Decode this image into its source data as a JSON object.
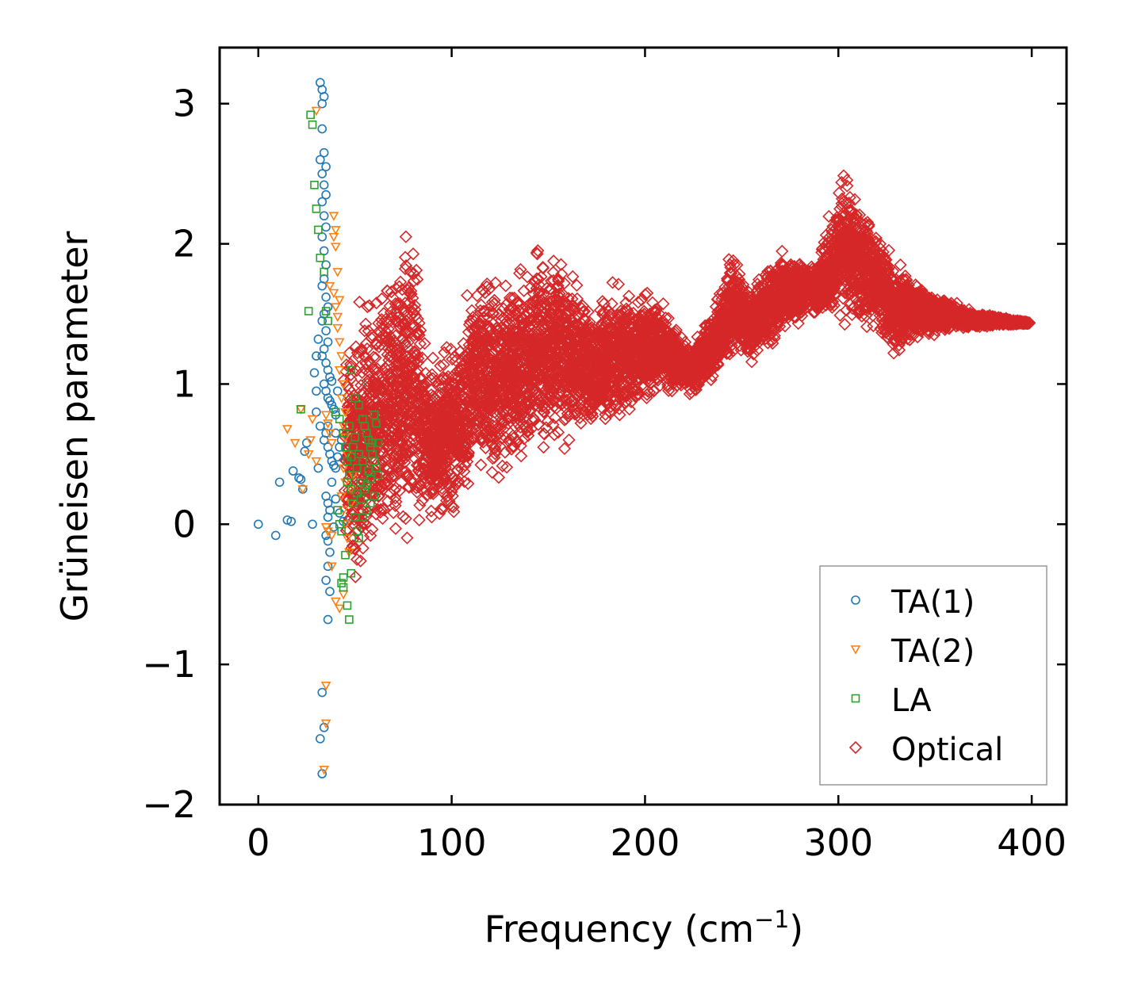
{
  "chart_data": {
    "type": "scatter",
    "title": "",
    "xlabel": "Frequency (cm",
    "xlabel_sup": "−1",
    "xlabel_suffix": ")",
    "ylabel": "Grüneisen parameter",
    "xlim": [
      -20,
      418
    ],
    "ylim": [
      -2,
      3.4
    ],
    "xticks": [
      0,
      100,
      200,
      300,
      400
    ],
    "xtick_labels": [
      "0",
      "100",
      "200",
      "300",
      "400"
    ],
    "yticks": [
      -2,
      -1,
      0,
      1,
      2,
      3
    ],
    "ytick_labels": [
      "−2",
      "−1",
      "0",
      "1",
      "2",
      "3"
    ],
    "grid": false,
    "legend_position": "lower-right",
    "series": [
      {
        "name": "TA(1)",
        "marker": "circle",
        "color": "#1f77b4",
        "points": [
          [
            0,
            0
          ],
          [
            9,
            -0.08
          ],
          [
            11,
            0.3
          ],
          [
            15,
            0.03
          ],
          [
            17,
            0.02
          ],
          [
            18,
            0.38
          ],
          [
            21,
            0.33
          ],
          [
            22,
            0.32
          ],
          [
            23,
            0.25
          ],
          [
            24,
            0.52
          ],
          [
            25,
            0.58
          ],
          [
            28,
            0
          ],
          [
            30,
            0.8
          ],
          [
            31,
            0.4
          ],
          [
            32,
            -1.53
          ],
          [
            33,
            -1.2
          ],
          [
            33,
            -1.78
          ],
          [
            34,
            -1.45
          ],
          [
            32,
            3.15
          ],
          [
            33,
            3.1
          ],
          [
            33,
            3.0
          ],
          [
            34,
            3.05
          ],
          [
            33,
            2.82
          ],
          [
            32,
            2.6
          ],
          [
            34,
            2.65
          ],
          [
            35,
            2.55
          ],
          [
            33,
            2.5
          ],
          [
            34,
            2.42
          ],
          [
            35,
            2.35
          ],
          [
            33,
            2.3
          ],
          [
            34,
            2.2
          ],
          [
            35,
            2.12
          ],
          [
            33,
            2.05
          ],
          [
            34,
            1.95
          ],
          [
            35,
            1.85
          ],
          [
            34,
            1.75
          ],
          [
            33,
            1.7
          ],
          [
            35,
            1.62
          ],
          [
            36,
            1.55
          ],
          [
            34,
            1.5
          ],
          [
            33,
            1.45
          ],
          [
            35,
            1.38
          ],
          [
            36,
            1.3
          ],
          [
            34,
            1.25
          ],
          [
            33,
            1.2
          ],
          [
            35,
            1.15
          ],
          [
            36,
            1.1
          ],
          [
            37,
            1.05
          ],
          [
            34,
            1.0
          ],
          [
            35,
            0.95
          ],
          [
            36,
            0.9
          ],
          [
            37,
            0.88
          ],
          [
            38,
            0.85
          ],
          [
            39,
            0.82
          ],
          [
            40,
            0.78
          ],
          [
            36,
            0.7
          ],
          [
            35,
            0.65
          ],
          [
            34,
            0.6
          ],
          [
            36,
            0.55
          ],
          [
            37,
            0.5
          ],
          [
            38,
            0.45
          ],
          [
            39,
            0.42
          ],
          [
            40,
            0.4
          ],
          [
            35,
            0.2
          ],
          [
            36,
            0.15
          ],
          [
            37,
            0.1
          ],
          [
            36,
            0.05
          ],
          [
            35,
            -0.08
          ],
          [
            36,
            -0.12
          ],
          [
            37,
            -0.2
          ],
          [
            36,
            -0.3
          ],
          [
            35,
            -0.4
          ],
          [
            37,
            -0.48
          ],
          [
            36,
            -0.68
          ],
          [
            29,
            1.08
          ],
          [
            30,
            1.2
          ],
          [
            31,
            1.32
          ],
          [
            30,
            0.95
          ],
          [
            32,
            0.7
          ],
          [
            40,
            0.65
          ],
          [
            42,
            0.55
          ],
          [
            41,
            0.48
          ],
          [
            43,
            0.6
          ],
          [
            38,
            0.3
          ],
          [
            40,
            0.18
          ],
          [
            42,
            0.08
          ],
          [
            44,
            0.02
          ],
          [
            39,
            -0.02
          ],
          [
            41,
            0.95
          ],
          [
            38,
            1.02
          ]
        ]
      },
      {
        "name": "TA(2)",
        "marker": "triangle-down",
        "color": "#ff7f0e",
        "points": [
          [
            15,
            0.68
          ],
          [
            19,
            0.58
          ],
          [
            22,
            0.82
          ],
          [
            23,
            0.25
          ],
          [
            26,
            0.5
          ],
          [
            27,
            0.6
          ],
          [
            28,
            0.75
          ],
          [
            30,
            0.45
          ],
          [
            30,
            2.95
          ],
          [
            35,
            -1.15
          ],
          [
            35,
            -1.42
          ],
          [
            34,
            -1.75
          ],
          [
            35,
            -0.02
          ],
          [
            36,
            -0.05
          ],
          [
            38,
            -0.08
          ],
          [
            38,
            -0.3
          ],
          [
            40,
            -0.55
          ],
          [
            42,
            -0.6
          ],
          [
            44,
            -0.5
          ],
          [
            37,
            1.7
          ],
          [
            39,
            1.65
          ],
          [
            40,
            1.55
          ],
          [
            41,
            1.48
          ],
          [
            39,
            2.2
          ],
          [
            40,
            2.1
          ],
          [
            39,
            2.05
          ],
          [
            40,
            1.98
          ],
          [
            41,
            1.8
          ],
          [
            42,
            1.6
          ],
          [
            41,
            1.4
          ],
          [
            42,
            1.3
          ],
          [
            43,
            1.2
          ],
          [
            42,
            1.1
          ],
          [
            44,
            1.0
          ],
          [
            43,
            0.9
          ],
          [
            45,
            0.8
          ],
          [
            44,
            0.7
          ],
          [
            45,
            0.62
          ],
          [
            46,
            0.5
          ],
          [
            44,
            0.4
          ],
          [
            45,
            0.3
          ],
          [
            43,
            0.2
          ],
          [
            44,
            0.1
          ],
          [
            45,
            0.0
          ],
          [
            46,
            -0.1
          ],
          [
            47,
            -0.2
          ],
          [
            48,
            0.15
          ],
          [
            48,
            0.25
          ],
          [
            49,
            0.35
          ],
          [
            35,
            0.78
          ],
          [
            36,
            0.72
          ],
          [
            37,
            0.65
          ],
          [
            38,
            0.58
          ]
        ]
      },
      {
        "name": "LA",
        "marker": "square",
        "color": "#2ca02c",
        "points": [
          [
            26,
            1.52
          ],
          [
            22,
            0.82
          ],
          [
            27,
            2.92
          ],
          [
            28,
            2.85
          ],
          [
            29,
            2.42
          ],
          [
            30,
            2.25
          ],
          [
            31,
            2.1
          ],
          [
            32,
            1.9
          ],
          [
            34,
            1.8
          ],
          [
            35,
            1.52
          ],
          [
            36,
            1.45
          ],
          [
            40,
            0.8
          ],
          [
            42,
            0.75
          ],
          [
            44,
            0.65
          ],
          [
            45,
            0.55
          ],
          [
            46,
            0.45
          ],
          [
            47,
            0.35
          ],
          [
            48,
            0.25
          ],
          [
            49,
            0.15
          ],
          [
            50,
            0.05
          ],
          [
            51,
            -0.05
          ],
          [
            52,
            -0.1
          ],
          [
            44,
            -0.38
          ],
          [
            43,
            -0.42
          ],
          [
            44,
            -0.45
          ],
          [
            46,
            -0.58
          ],
          [
            47,
            -0.68
          ],
          [
            48,
            -0.35
          ],
          [
            45,
            -0.22
          ],
          [
            41,
            0.1
          ],
          [
            42,
            0.0
          ],
          [
            43,
            -0.05
          ],
          [
            48,
            1.1
          ],
          [
            50,
            0.9
          ],
          [
            52,
            0.85
          ],
          [
            54,
            0.75
          ],
          [
            55,
            0.7
          ],
          [
            56,
            0.65
          ],
          [
            57,
            0.6
          ],
          [
            58,
            0.55
          ],
          [
            59,
            0.5
          ],
          [
            60,
            0.45
          ],
          [
            61,
            0.4
          ],
          [
            62,
            0.35
          ],
          [
            60,
            0.2
          ],
          [
            58,
            0.15
          ],
          [
            56,
            0.1
          ],
          [
            54,
            0.05
          ],
          [
            53,
            0.3
          ],
          [
            51,
            0.4
          ],
          [
            55,
            0.25
          ],
          [
            57,
            0.38
          ],
          [
            59,
            0.58
          ],
          [
            61,
            0.72
          ],
          [
            50,
            0.62
          ],
          [
            52,
            0.5
          ],
          [
            54,
            0.45
          ],
          [
            56,
            0.28
          ],
          [
            58,
            0.32
          ],
          [
            53,
            0.18
          ],
          [
            51,
            0.22
          ],
          [
            49,
            0.55
          ],
          [
            47,
            0.7
          ],
          [
            46,
            0.3
          ],
          [
            48,
            0.48
          ],
          [
            60,
            0.78
          ],
          [
            62,
            0.58
          ]
        ]
      },
      {
        "name": "Optical",
        "marker": "diamond",
        "color": "#d62728",
        "envelope": [
          [
            45,
            1.35,
            -0.3
          ],
          [
            50,
            1.55,
            -0.5
          ],
          [
            55,
            1.7,
            -0.4
          ],
          [
            60,
            1.75,
            -0.3
          ],
          [
            65,
            1.85,
            -0.25
          ],
          [
            70,
            1.95,
            -0.3
          ],
          [
            75,
            2.15,
            -0.2
          ],
          [
            80,
            2.28,
            -0.1
          ],
          [
            85,
            1.5,
            -0.05
          ],
          [
            90,
            1.3,
            -0.1
          ],
          [
            95,
            1.35,
            -0.05
          ],
          [
            100,
            1.4,
            -0.05
          ],
          [
            105,
            1.45,
            0.05
          ],
          [
            110,
            1.8,
            0.2
          ],
          [
            115,
            1.85,
            0.25
          ],
          [
            120,
            1.8,
            0.2
          ],
          [
            125,
            1.75,
            0.3
          ],
          [
            130,
            1.85,
            0.35
          ],
          [
            135,
            1.9,
            0.3
          ],
          [
            140,
            1.95,
            0.4
          ],
          [
            145,
            2.15,
            0.45
          ],
          [
            150,
            1.95,
            0.5
          ],
          [
            155,
            2.05,
            0.5
          ],
          [
            160,
            1.85,
            0.55
          ],
          [
            165,
            1.75,
            0.6
          ],
          [
            170,
            1.7,
            0.65
          ],
          [
            175,
            1.6,
            0.6
          ],
          [
            180,
            1.78,
            0.62
          ],
          [
            185,
            1.7,
            0.65
          ],
          [
            190,
            1.72,
            0.75
          ],
          [
            195,
            1.68,
            0.8
          ],
          [
            200,
            1.7,
            0.82
          ],
          [
            205,
            1.65,
            0.85
          ],
          [
            210,
            1.55,
            0.9
          ],
          [
            215,
            1.45,
            0.9
          ],
          [
            220,
            1.35,
            0.92
          ],
          [
            225,
            1.3,
            0.9
          ],
          [
            230,
            1.45,
            0.95
          ],
          [
            235,
            1.55,
            1.0
          ],
          [
            240,
            1.75,
            1.05
          ],
          [
            245,
            2.15,
            1.1
          ],
          [
            250,
            1.8,
            1.15
          ],
          [
            255,
            1.7,
            1.15
          ],
          [
            260,
            1.8,
            1.2
          ],
          [
            265,
            1.9,
            1.25
          ],
          [
            270,
            2.0,
            1.3
          ],
          [
            275,
            1.95,
            1.35
          ],
          [
            280,
            1.9,
            1.4
          ],
          [
            285,
            1.85,
            1.5
          ],
          [
            290,
            1.95,
            1.45
          ],
          [
            295,
            2.15,
            1.42
          ],
          [
            300,
            2.5,
            1.42
          ],
          [
            305,
            2.55,
            1.4
          ],
          [
            310,
            2.4,
            1.3
          ],
          [
            315,
            2.3,
            1.35
          ],
          [
            320,
            2.2,
            1.3
          ],
          [
            325,
            2.05,
            1.2
          ],
          [
            330,
            1.9,
            1.15
          ],
          [
            335,
            1.85,
            1.2
          ],
          [
            340,
            1.8,
            1.3
          ],
          [
            345,
            1.7,
            1.3
          ],
          [
            350,
            1.65,
            1.35
          ],
          [
            355,
            1.62,
            1.35
          ],
          [
            360,
            1.6,
            1.38
          ],
          [
            365,
            1.55,
            1.38
          ],
          [
            370,
            1.52,
            1.4
          ],
          [
            375,
            1.5,
            1.4
          ],
          [
            380,
            1.5,
            1.41
          ],
          [
            385,
            1.48,
            1.42
          ],
          [
            390,
            1.46,
            1.42
          ],
          [
            395,
            1.45,
            1.43
          ],
          [
            398,
            1.44,
            1.43
          ]
        ]
      }
    ]
  }
}
